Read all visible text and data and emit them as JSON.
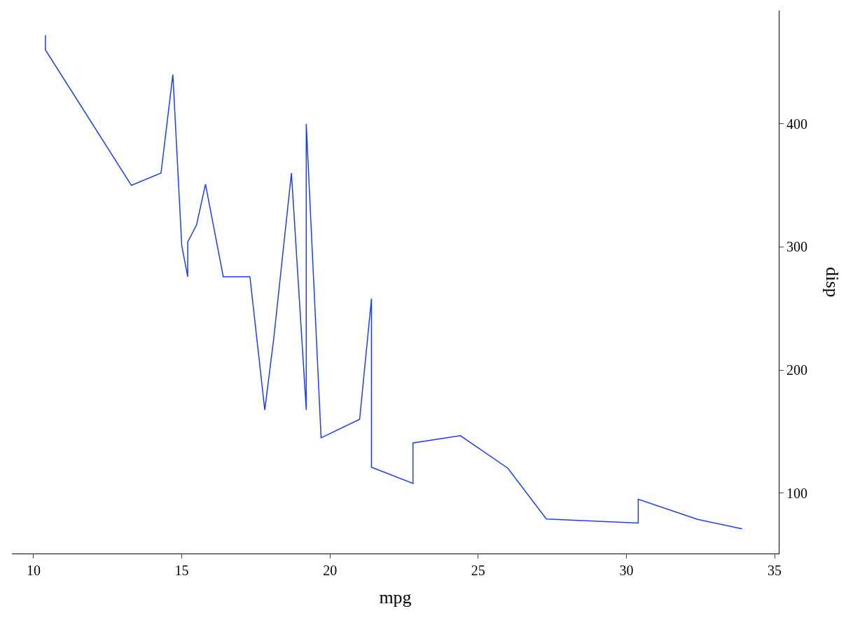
{
  "chart_data": {
    "type": "line",
    "xlabel": "mpg",
    "ylabel": "disp",
    "x": [
      10.4,
      10.4,
      13.3,
      14.3,
      14.7,
      15.0,
      15.2,
      15.2,
      15.5,
      15.8,
      16.4,
      17.3,
      17.8,
      18.1,
      18.7,
      19.2,
      19.2,
      19.7,
      21.0,
      21.0,
      21.4,
      21.4,
      21.5,
      22.8,
      22.8,
      24.4,
      26.0,
      27.3,
      30.4,
      30.4,
      32.4,
      33.9
    ],
    "series": [
      {
        "color": "#1a3cff",
        "values": [
          472,
          460,
          350,
          360,
          440,
          301,
          275.8,
          304,
          318,
          351,
          275.8,
          275.8,
          167.6,
          225,
          360,
          167.6,
          400,
          145,
          160,
          160,
          258,
          121,
          120.1,
          108,
          140.8,
          146.7,
          120.3,
          79,
          75.7,
          95.1,
          78.7,
          71.1
        ]
      }
    ],
    "xlim": [
      9.27,
      35.14
    ],
    "ylim": [
      51,
      492
    ],
    "xticks": [
      10,
      15,
      20,
      25,
      30,
      35
    ],
    "yticks": [
      100,
      200,
      300,
      400
    ],
    "line_style": "solid"
  }
}
